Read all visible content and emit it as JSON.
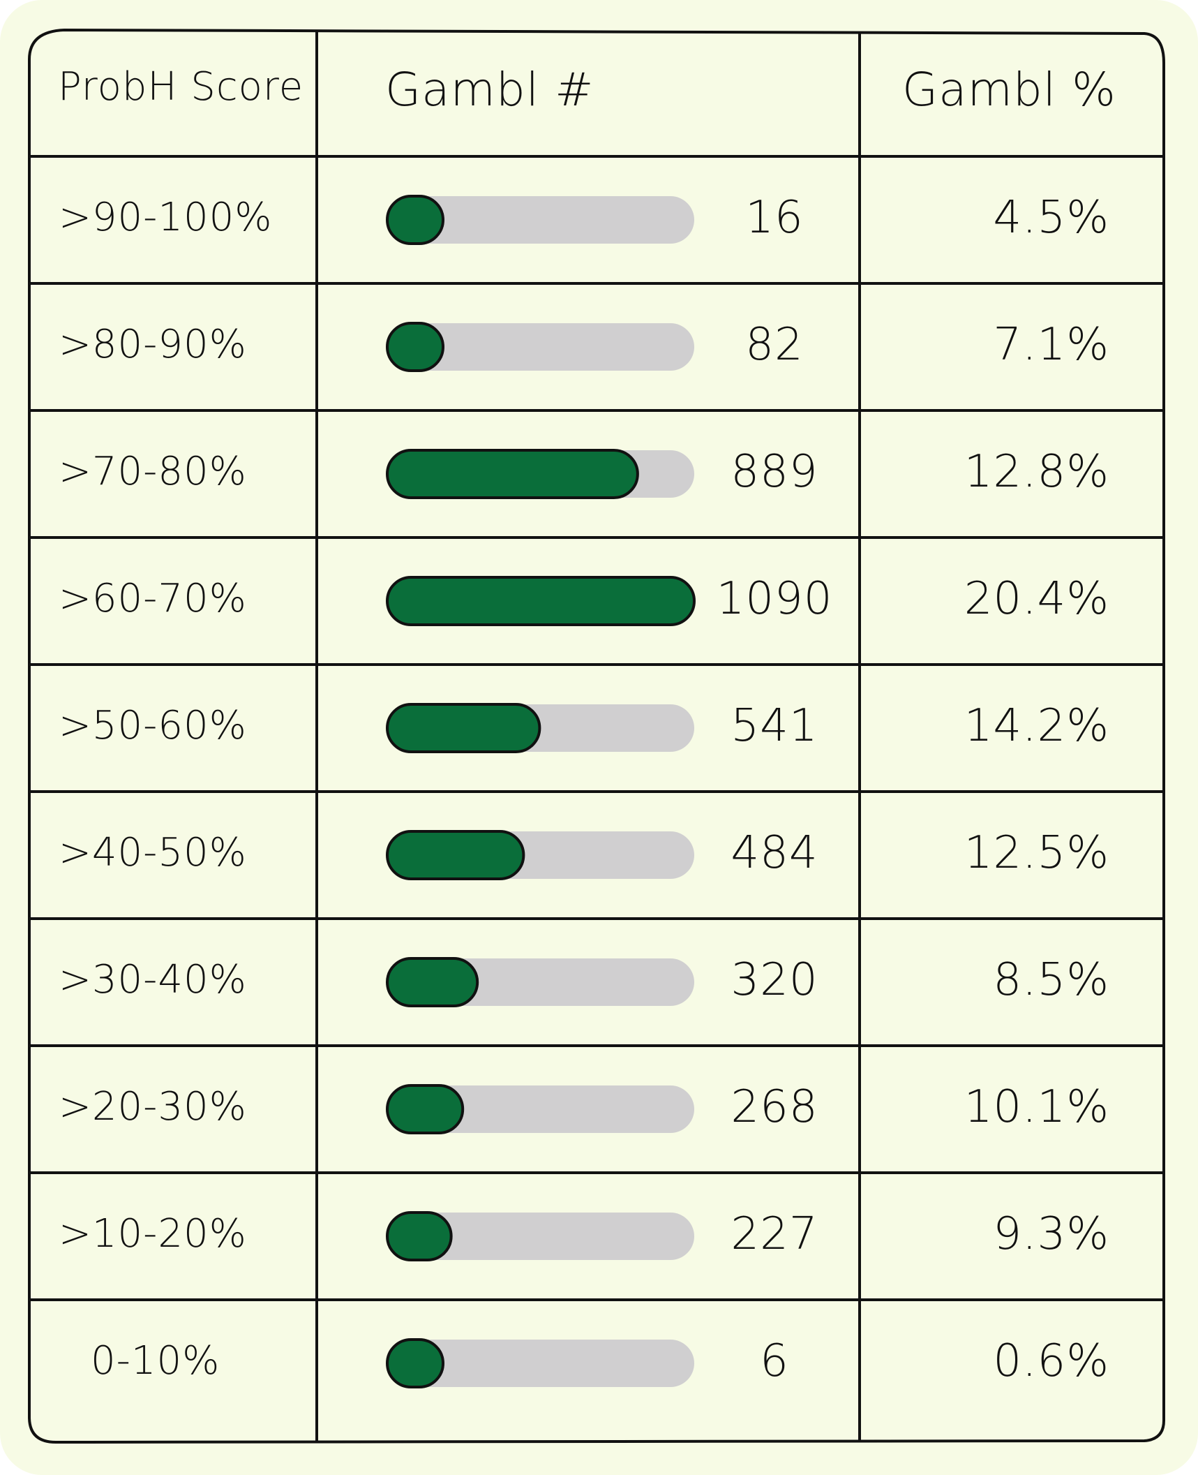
{
  "colors": {
    "background": "#f7fbe5",
    "bar_fill": "#0a6e3a",
    "bar_track": "#d0cfd0",
    "ink": "#111111"
  },
  "headers": {
    "score": "ProbH Score",
    "count": "Gambl #",
    "percent": "Gambl %"
  },
  "chart_data": {
    "type": "table",
    "columns": [
      "ProbH Score",
      "Gambl #",
      "Gambl %"
    ],
    "bar_max": 1090,
    "rows": [
      {
        "label": ">90-100%",
        "count": 16,
        "count_text": "16",
        "percent": "4.5%"
      },
      {
        "label": ">80-90%",
        "count": 82,
        "count_text": "82",
        "percent": "7.1%"
      },
      {
        "label": ">70-80%",
        "count": 889,
        "count_text": "889",
        "percent": "12.8%"
      },
      {
        "label": ">60-70%",
        "count": 1090,
        "count_text": "1090",
        "percent": "20.4%"
      },
      {
        "label": ">50-60%",
        "count": 541,
        "count_text": "541",
        "percent": "14.2%"
      },
      {
        "label": ">40-50%",
        "count": 484,
        "count_text": "484",
        "percent": "12.5%"
      },
      {
        "label": ">30-40%",
        "count": 320,
        "count_text": "320",
        "percent": "8.5%"
      },
      {
        "label": ">20-30%",
        "count": 268,
        "count_text": "268",
        "percent": "10.1%"
      },
      {
        "label": ">10-20%",
        "count": 227,
        "count_text": "227",
        "percent": "9.3%"
      },
      {
        "label": "0-10%",
        "count": 6,
        "count_text": "6",
        "percent": "0.6%"
      }
    ]
  }
}
